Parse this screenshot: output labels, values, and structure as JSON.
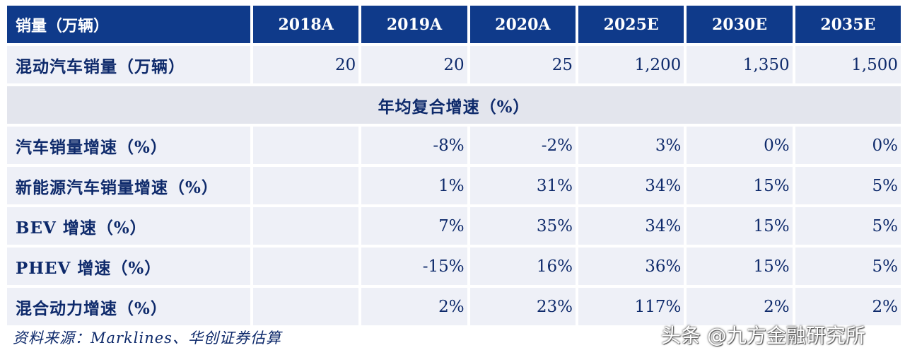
{
  "header": {
    "label": "销量（万辆）",
    "years": [
      "2018A",
      "2019A",
      "2020A",
      "2025E",
      "2030E",
      "2035E"
    ]
  },
  "sales_row": {
    "label": "混动汽车销量（万辆）",
    "values": [
      "20",
      "20",
      "25",
      "1,200",
      "1,350",
      "1,500"
    ]
  },
  "section_title": "年均复合增速（%）",
  "growth_rows": [
    {
      "label": "汽车销量增速（%）",
      "values": [
        "",
        "-8%",
        "-2%",
        "3%",
        "0%",
        "0%"
      ]
    },
    {
      "label": "新能源汽车销量增速（%）",
      "values": [
        "",
        "1%",
        "31%",
        "34%",
        "15%",
        "5%"
      ]
    },
    {
      "label": "BEV 增速（%）",
      "values": [
        "",
        "7%",
        "35%",
        "34%",
        "15%",
        "5%"
      ]
    },
    {
      "label": "PHEV 增速（%）",
      "values": [
        "",
        "-15%",
        "16%",
        "36%",
        "15%",
        "5%"
      ]
    },
    {
      "label": "混合动力增速（%）",
      "values": [
        "",
        "2%",
        "23%",
        "117%",
        "2%",
        "2%"
      ]
    }
  ],
  "source": "资料来源：Marklines、华创证券估算",
  "watermark": "头条 @九方金融研究所"
}
